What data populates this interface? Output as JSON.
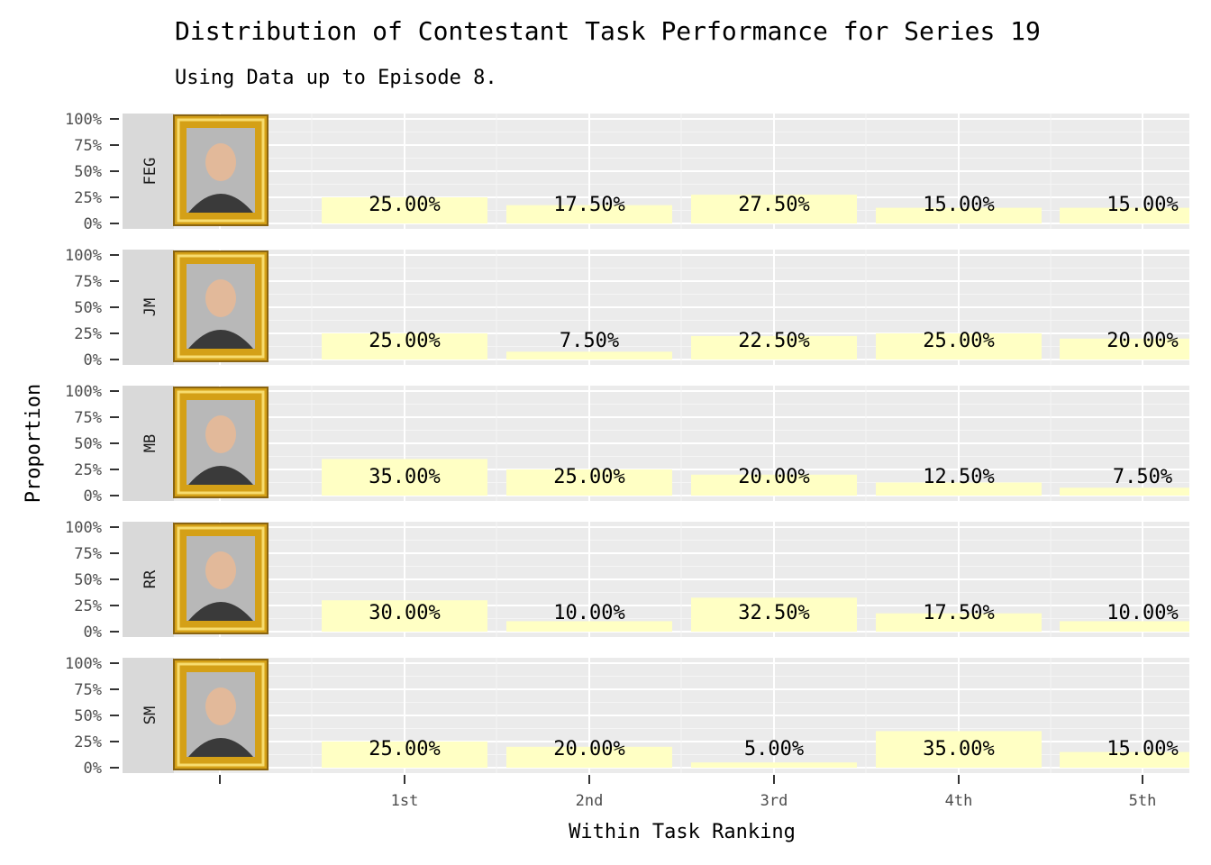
{
  "chart_data": {
    "type": "bar",
    "title": "Distribution of Contestant Task Performance for Series 19",
    "subtitle": "Using Data up to Episode 8.",
    "xlabel": "Within Task Ranking",
    "ylabel": "Proportion",
    "categories": [
      "1st",
      "2nd",
      "3rd",
      "4th",
      "5th"
    ],
    "yticks": [
      "0%",
      "25%",
      "50%",
      "75%",
      "100%"
    ],
    "ylim": [
      0,
      1
    ],
    "bar_color": "#ffffc4",
    "panel_color": "#ebebeb",
    "strip_color": "#d9d9d9",
    "frame_color": "#d4a017",
    "facets": [
      {
        "name": "FEG",
        "values": [
          0.25,
          0.175,
          0.275,
          0.15,
          0.15
        ],
        "labels": [
          "25.00%",
          "17.50%",
          "27.50%",
          "15.00%",
          "15.00%"
        ]
      },
      {
        "name": "JM",
        "values": [
          0.25,
          0.075,
          0.225,
          0.25,
          0.2
        ],
        "labels": [
          "25.00%",
          "7.50%",
          "22.50%",
          "25.00%",
          "20.00%"
        ]
      },
      {
        "name": "MB",
        "values": [
          0.35,
          0.25,
          0.2,
          0.125,
          0.075
        ],
        "labels": [
          "35.00%",
          "25.00%",
          "20.00%",
          "12.50%",
          "7.50%"
        ]
      },
      {
        "name": "RR",
        "values": [
          0.3,
          0.1,
          0.325,
          0.175,
          0.1
        ],
        "labels": [
          "30.00%",
          "10.00%",
          "32.50%",
          "17.50%",
          "10.00%"
        ]
      },
      {
        "name": "SM",
        "values": [
          0.25,
          0.2,
          0.05,
          0.35,
          0.15
        ],
        "labels": [
          "25.00%",
          "20.00%",
          "5.00%",
          "35.00%",
          "15.00%"
        ]
      }
    ]
  }
}
